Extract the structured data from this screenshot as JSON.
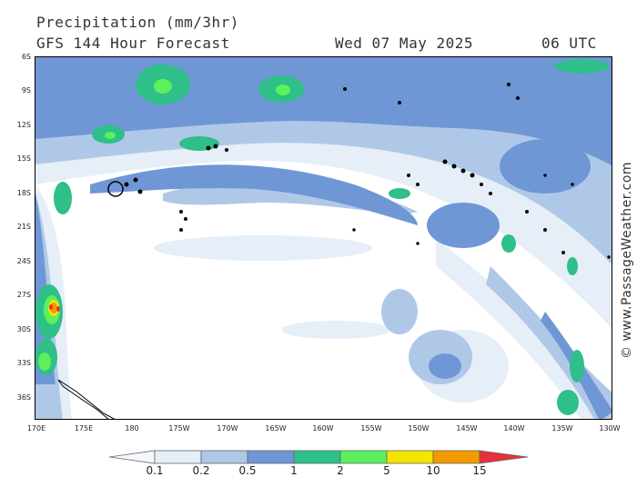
{
  "header": {
    "title": "Precipitation (mm/3hr)",
    "subtitle": "GFS 144 Hour Forecast",
    "date": "Wed 07 May 2025",
    "time": "06 UTC"
  },
  "watermark": "© www.PassageWeather.com",
  "map": {
    "lat_labels": [
      "6S",
      "9S",
      "12S",
      "15S",
      "18S",
      "21S",
      "24S",
      "27S",
      "30S",
      "33S",
      "36S"
    ],
    "lon_labels": [
      "170E",
      "175E",
      "180",
      "175W",
      "170W",
      "165W",
      "160W",
      "155W",
      "150W",
      "145W",
      "140W",
      "135W",
      "130W"
    ],
    "colors": {
      "p01": "#e6eef8",
      "p02": "#b0c8e8",
      "p05": "#6f97d6",
      "p1": "#2fbf88",
      "p2": "#5cf05c",
      "p5": "#f2e600",
      "p10": "#f29a00",
      "p15": "#e6303c",
      "land": "#000000"
    }
  },
  "legend": {
    "labels": [
      "0.1",
      "0.2",
      "0.5",
      "1",
      "2",
      "5",
      "10",
      "15"
    ],
    "colors": [
      "#f4f8fc",
      "#e6eef8",
      "#b0c8e8",
      "#6f97d6",
      "#2fbf88",
      "#5cf05c",
      "#f2e600",
      "#f29a00",
      "#e6303c"
    ]
  }
}
